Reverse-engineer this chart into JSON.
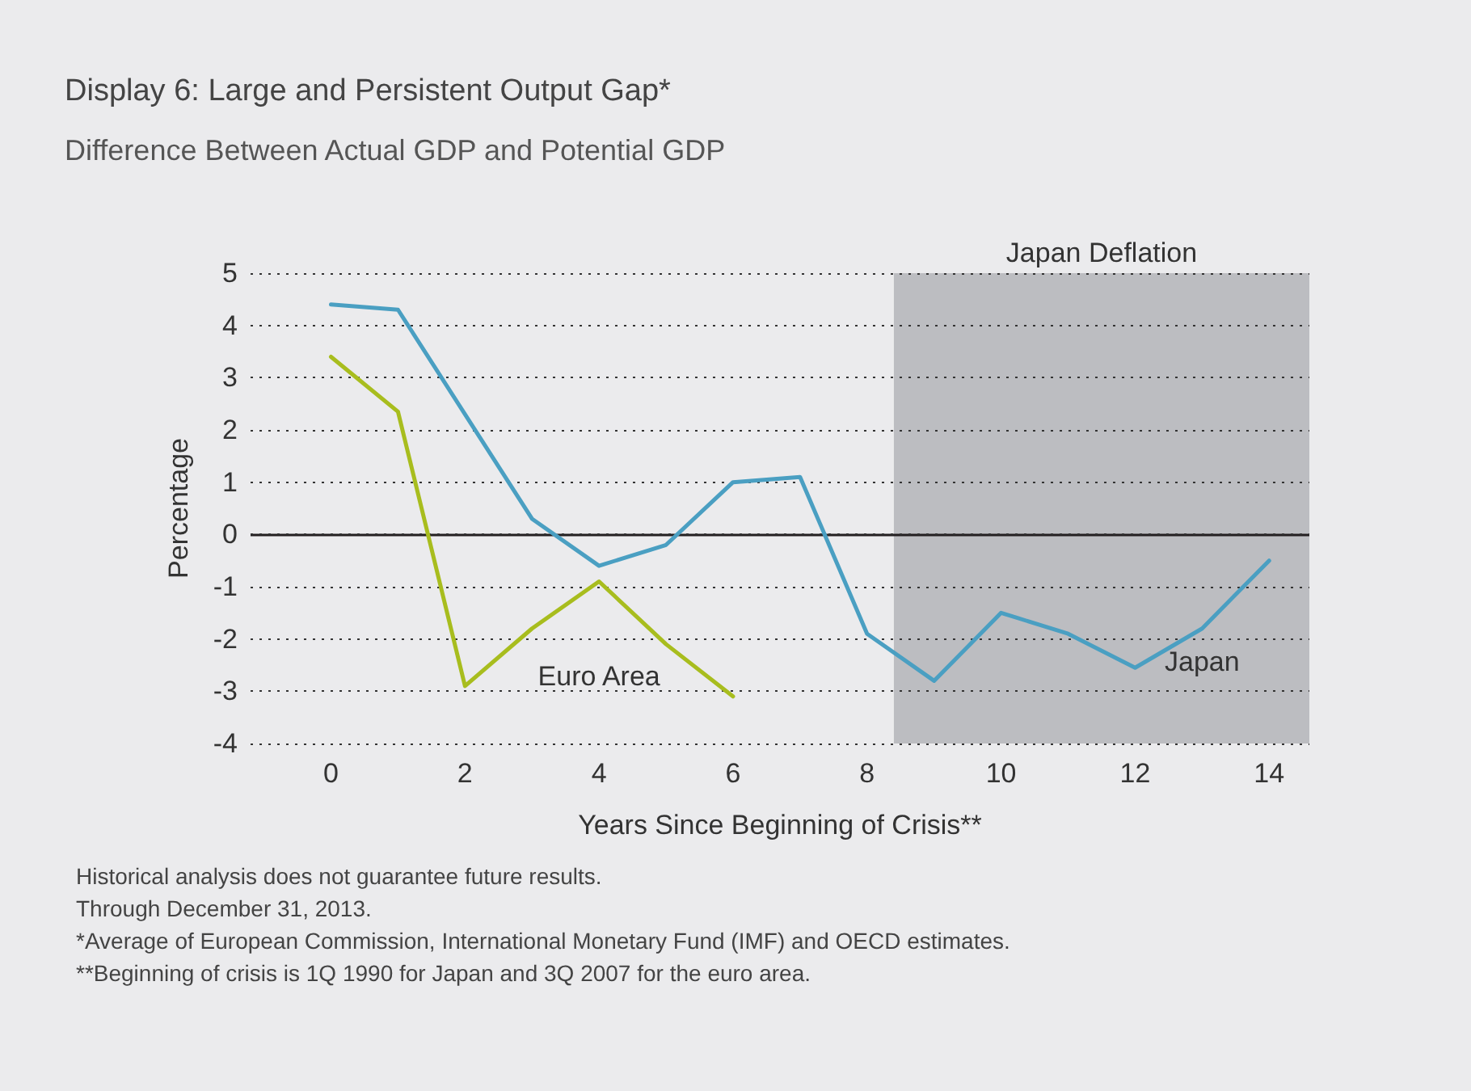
{
  "chart_data": {
    "type": "line",
    "title": "Display 6: Large and Persistent Output Gap*",
    "subtitle": "Difference Between Actual GDP and Potential GDP",
    "xlabel": "Years Since Beginning of Crisis**",
    "ylabel": "Percentage",
    "x": [
      0,
      1,
      2,
      3,
      4,
      5,
      6,
      7,
      8,
      9,
      10,
      11,
      12,
      13,
      14
    ],
    "series": [
      {
        "name": "Japan",
        "color": "#4a9fc2",
        "values": [
          4.4,
          4.3,
          2.3,
          0.3,
          -0.6,
          -0.2,
          1.0,
          1.1,
          -1.9,
          -2.8,
          -1.5,
          -1.9,
          -2.55,
          -1.8,
          -0.5
        ]
      },
      {
        "name": "Euro Area",
        "color": "#a8bd1e",
        "values": [
          3.4,
          2.35,
          -2.9,
          -1.8,
          -0.9,
          -2.1,
          -3.1,
          null,
          null,
          null,
          null,
          null,
          null,
          null,
          null
        ]
      }
    ],
    "xlim": [
      -1.2,
      14.6
    ],
    "xticks": [
      0,
      2,
      4,
      6,
      8,
      10,
      12,
      14
    ],
    "ylim": [
      -4,
      5
    ],
    "yticks": [
      -4,
      -3,
      -2,
      -1,
      0,
      1,
      2,
      3,
      4,
      5
    ],
    "grid": "y",
    "legend": false,
    "marker": "none",
    "line_style": "solid",
    "ref_lines": [
      {
        "axis": "y",
        "value": 0,
        "color": "#231f20"
      }
    ],
    "bands": [
      {
        "axis": "x",
        "from": 8.4,
        "to": 14.6,
        "label": "Japan Deflation",
        "color": "#bcbdc1"
      }
    ],
    "annotations": [
      "Historical analysis does not guarantee future results.",
      "Through December 31, 2013.",
      "*Average of European Commission, International Monetary Fund (IMF) and OECD estimates.",
      "**Beginning of crisis is 1Q 1990 for Japan and 3Q 2007 for the euro area."
    ]
  }
}
